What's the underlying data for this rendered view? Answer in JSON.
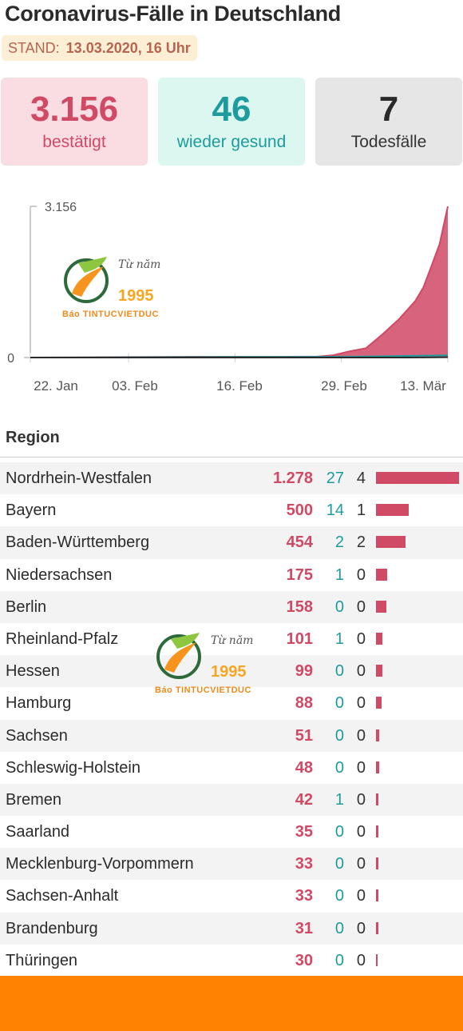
{
  "header": {
    "title": "Coronavirus-Fälle in Deutschland",
    "stand_label": "STAND:",
    "stand_date": "13.03.2020, 16 Uhr"
  },
  "summary": {
    "confirmed": {
      "value": "3.156",
      "label": "bestätigt"
    },
    "recovered": {
      "value": "46",
      "label": "wieder gesund"
    },
    "deaths": {
      "value": "7",
      "label": "Todesfälle"
    }
  },
  "chart_data": {
    "type": "area",
    "y_tick_labels": [
      "0",
      "3.156"
    ],
    "x_tick_labels": [
      "22. Jan",
      "03. Feb",
      "16. Feb",
      "29. Feb",
      "13. Mär"
    ],
    "ylim": [
      0,
      3156
    ],
    "grid": false,
    "colors": {
      "confirmed": "#d04965",
      "recovered": "#1d9b9d",
      "deaths": "#2a2a2a"
    },
    "series": [
      {
        "key": "confirmed",
        "x": [
          "2020-01-22",
          "2020-01-27",
          "2020-02-01",
          "2020-02-06",
          "2020-02-11",
          "2020-02-16",
          "2020-02-21",
          "2020-02-26",
          "2020-02-28",
          "2020-03-01",
          "2020-03-03",
          "2020-03-05",
          "2020-03-07",
          "2020-03-09",
          "2020-03-10",
          "2020-03-11",
          "2020-03-12",
          "2020-03-13"
        ],
        "values": [
          0,
          1,
          8,
          12,
          16,
          16,
          16,
          18,
          48,
          130,
          196,
          482,
          795,
          1176,
          1457,
          1908,
          2369,
          3156
        ]
      },
      {
        "key": "recovered",
        "x": [
          "2020-01-22",
          "2020-02-16",
          "2020-03-01",
          "2020-03-13"
        ],
        "values": [
          0,
          14,
          16,
          46
        ]
      },
      {
        "key": "deaths",
        "x": [
          "2020-01-22",
          "2020-03-08",
          "2020-03-10",
          "2020-03-13"
        ],
        "values": [
          0,
          0,
          2,
          7
        ]
      }
    ]
  },
  "region": {
    "heading": "Region",
    "max_confirmed": 1278,
    "rows": [
      {
        "name": "Nordrhein-Westfalen",
        "confirmed": "1.278",
        "confirmed_value": 1278,
        "recovered": "27",
        "deaths": "4"
      },
      {
        "name": "Bayern",
        "confirmed": "500",
        "confirmed_value": 500,
        "recovered": "14",
        "deaths": "1"
      },
      {
        "name": "Baden-Württemberg",
        "confirmed": "454",
        "confirmed_value": 454,
        "recovered": "2",
        "deaths": "2"
      },
      {
        "name": "Niedersachsen",
        "confirmed": "175",
        "confirmed_value": 175,
        "recovered": "1",
        "deaths": "0"
      },
      {
        "name": "Berlin",
        "confirmed": "158",
        "confirmed_value": 158,
        "recovered": "0",
        "deaths": "0"
      },
      {
        "name": "Rheinland-Pfalz",
        "confirmed": "101",
        "confirmed_value": 101,
        "recovered": "1",
        "deaths": "0"
      },
      {
        "name": "Hessen",
        "confirmed": "99",
        "confirmed_value": 99,
        "recovered": "0",
        "deaths": "0"
      },
      {
        "name": "Hamburg",
        "confirmed": "88",
        "confirmed_value": 88,
        "recovered": "0",
        "deaths": "0"
      },
      {
        "name": "Sachsen",
        "confirmed": "51",
        "confirmed_value": 51,
        "recovered": "0",
        "deaths": "0"
      },
      {
        "name": "Schleswig-Holstein",
        "confirmed": "48",
        "confirmed_value": 48,
        "recovered": "0",
        "deaths": "0"
      },
      {
        "name": "Bremen",
        "confirmed": "42",
        "confirmed_value": 42,
        "recovered": "1",
        "deaths": "0"
      },
      {
        "name": "Saarland",
        "confirmed": "35",
        "confirmed_value": 35,
        "recovered": "0",
        "deaths": "0"
      },
      {
        "name": "Mecklenburg-Vorpommern",
        "confirmed": "33",
        "confirmed_value": 33,
        "recovered": "0",
        "deaths": "0"
      },
      {
        "name": "Sachsen-Anhalt",
        "confirmed": "33",
        "confirmed_value": 33,
        "recovered": "0",
        "deaths": "0"
      },
      {
        "name": "Brandenburg",
        "confirmed": "31",
        "confirmed_value": 31,
        "recovered": "0",
        "deaths": "0"
      },
      {
        "name": "Thüringen",
        "confirmed": "30",
        "confirmed_value": 30,
        "recovered": "0",
        "deaths": "0"
      }
    ]
  },
  "watermark": {
    "line1": "Từ năm",
    "year": "1995",
    "brand": "Báo TINTUCVIETDUC"
  },
  "footer": {
    "color": "#ff8200"
  }
}
